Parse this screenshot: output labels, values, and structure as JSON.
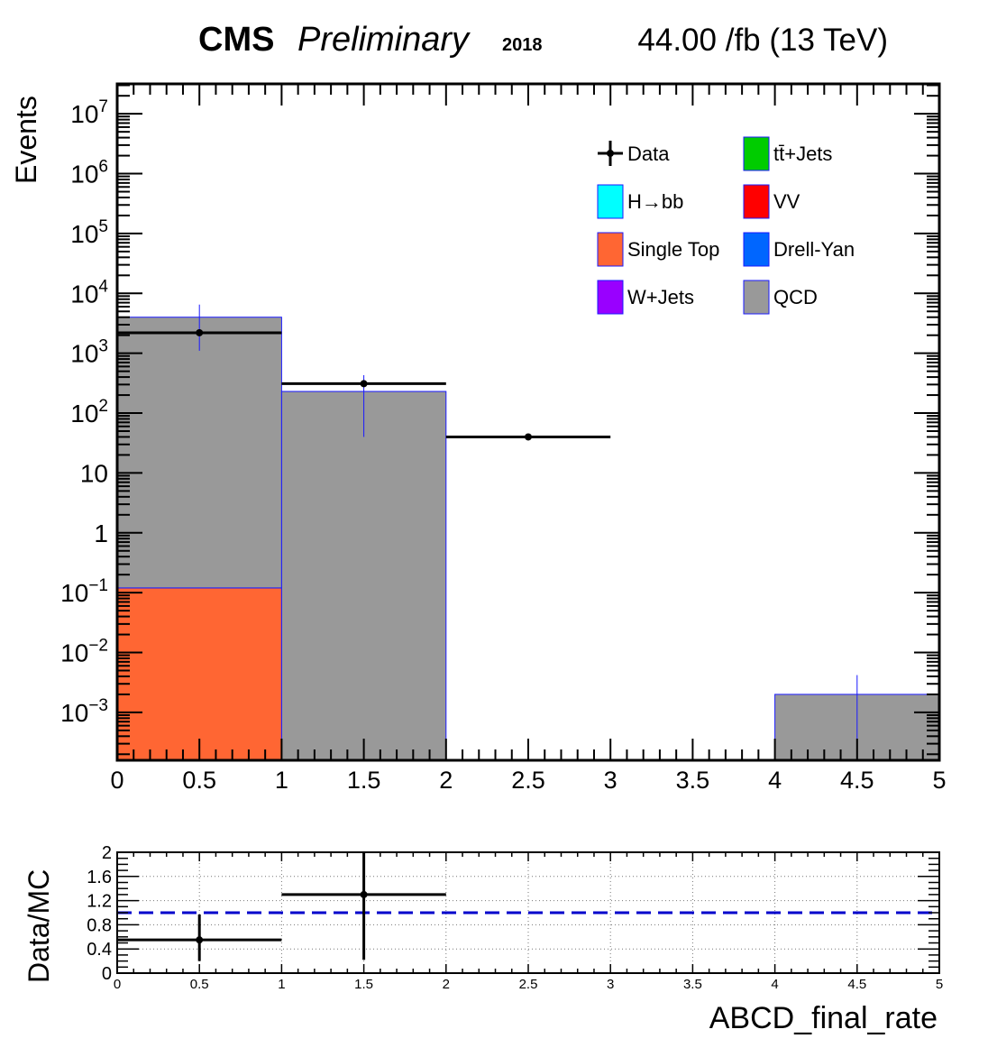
{
  "header": {
    "experiment": "CMS",
    "status": "Preliminary",
    "year": "2018",
    "lumi": "44.00 /fb (13 TeV)"
  },
  "chart_data": [
    {
      "type": "bar",
      "stacked": true,
      "log_y": true,
      "ylabel": "Events",
      "xlim": [
        0,
        5
      ],
      "ylim_log10": [
        -3.8,
        7.5
      ],
      "x_tick_labels": [
        "0",
        "0.5",
        "1",
        "1.5",
        "2",
        "2.5",
        "3",
        "3.5",
        "4",
        "4.5",
        "5"
      ],
      "y_tick_labels": [
        {
          "exp": 7,
          "base": "10",
          "sup": "7"
        },
        {
          "exp": 6,
          "base": "10",
          "sup": "6"
        },
        {
          "exp": 5,
          "base": "10",
          "sup": "5"
        },
        {
          "exp": 4,
          "base": "10",
          "sup": "4"
        },
        {
          "exp": 3,
          "base": "10",
          "sup": "3"
        },
        {
          "exp": 2,
          "base": "10",
          "sup": "2"
        },
        {
          "exp": 1,
          "base": "10",
          "sup": ""
        },
        {
          "exp": 0,
          "base": "1",
          "sup": ""
        },
        {
          "exp": -1,
          "base": "10",
          "sup": "−1"
        },
        {
          "exp": -2,
          "base": "10",
          "sup": "−2"
        },
        {
          "exp": -3,
          "base": "10",
          "sup": "−3"
        }
      ],
      "bin_edges": [
        0,
        1,
        2,
        3,
        4,
        5
      ],
      "series": [
        {
          "name": "Single Top",
          "color": "#ff6633",
          "values": [
            0.12,
            0,
            0,
            0,
            0
          ]
        },
        {
          "name": "QCD",
          "color": "#999999",
          "values": [
            4000,
            230,
            0,
            0,
            0.002
          ]
        }
      ],
      "mc_error": [
        {
          "x": 4.5,
          "low": 0.0003,
          "high": 0.0042
        }
      ],
      "data_points": [
        {
          "x": 0.5,
          "y": 2200,
          "xerr": 0.5,
          "ylow": 1100,
          "yhigh": 6500
        },
        {
          "x": 1.5,
          "y": 310,
          "xerr": 0.5,
          "ylow": 40,
          "yhigh": 430
        },
        {
          "x": 2.5,
          "y": 40,
          "xerr": 0.5,
          "ylow": 40,
          "yhigh": 40
        }
      ],
      "legend": {
        "placement": "top-right",
        "entries": [
          {
            "label": "Data",
            "kind": "marker",
            "color": "#000000"
          },
          {
            "label": "tt̄+Jets",
            "kind": "box",
            "color": "#00cc00"
          },
          {
            "label": "H→bb",
            "kind": "box",
            "color": "#00ffff"
          },
          {
            "label": "VV",
            "kind": "box",
            "color": "#ff0000"
          },
          {
            "label": "Single Top",
            "kind": "box",
            "color": "#ff6633"
          },
          {
            "label": "Drell-Yan",
            "kind": "box",
            "color": "#0066ff"
          },
          {
            "label": "W+Jets",
            "kind": "box",
            "color": "#9900ff"
          },
          {
            "label": "QCD",
            "kind": "box",
            "color": "#999999"
          }
        ]
      }
    },
    {
      "type": "scatter",
      "ylabel": "Data/MC",
      "xlabel": "ABCD_final_rate",
      "xlim": [
        0,
        5
      ],
      "ylim": [
        0,
        2
      ],
      "grid": true,
      "x_tick_labels": [
        "0",
        "0.5",
        "1",
        "1.5",
        "2",
        "2.5",
        "3",
        "3.5",
        "4",
        "4.5",
        "5"
      ],
      "y_tick_labels": [
        "0",
        "0.4",
        "0.8",
        "1.2",
        "1.6",
        "2"
      ],
      "y_tick_values": [
        0,
        0.4,
        0.8,
        1.2,
        1.6,
        2
      ],
      "reference_line": 1.0,
      "reference_color": "#0000cc",
      "points": [
        {
          "x": 0.5,
          "y": 0.55,
          "xerr": 0.5,
          "ylow": 0.2,
          "yhigh": 0.97
        },
        {
          "x": 1.5,
          "y": 1.3,
          "xerr": 0.5,
          "ylow": 0.22,
          "yhigh": 2.0
        }
      ]
    }
  ]
}
